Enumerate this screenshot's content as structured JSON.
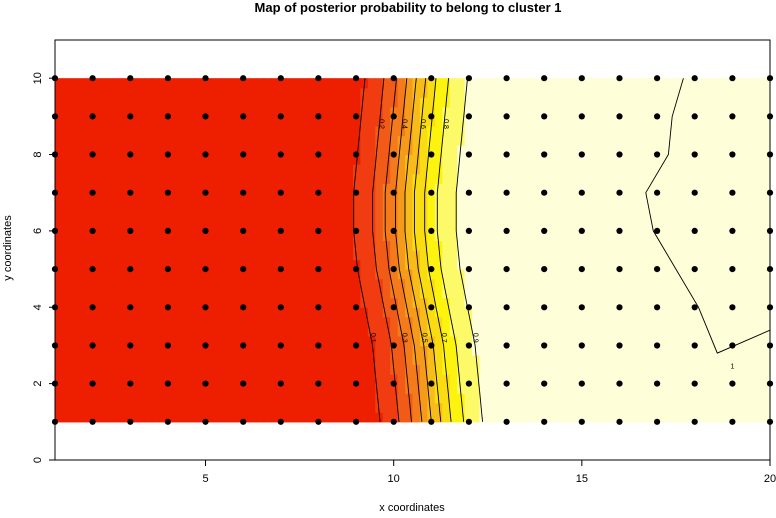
{
  "chart_data": {
    "type": "heatmap",
    "title": "Map of posterior probability to belong to cluster  1",
    "xlabel": "x coordinates",
    "ylabel": "y coordinates",
    "xlim": [
      1,
      20
    ],
    "ylim": [
      0,
      11
    ],
    "x_ticks": [
      5,
      10,
      15,
      20
    ],
    "y_ticks": [
      0,
      2,
      4,
      6,
      8,
      10
    ],
    "grid": false,
    "field": {
      "x_range": [
        1,
        20
      ],
      "y_range": [
        1,
        10
      ],
      "transition_x": [
        {
          "y": 1,
          "x": 11.0
        },
        {
          "y": 2,
          "x": 10.9
        },
        {
          "y": 3,
          "x": 10.8
        },
        {
          "y": 4,
          "x": 10.6
        },
        {
          "y": 5,
          "x": 10.4
        },
        {
          "y": 6,
          "x": 10.3
        },
        {
          "y": 7,
          "x": 10.3
        },
        {
          "y": 8,
          "x": 10.4
        },
        {
          "y": 9,
          "x": 10.5
        },
        {
          "y": 10,
          "x": 10.6
        }
      ],
      "color_levels": [
        {
          "max": 0.1,
          "color": "#ee1e00"
        },
        {
          "max": 0.2,
          "color": "#f03c10"
        },
        {
          "max": 0.3,
          "color": "#f25a18"
        },
        {
          "max": 0.4,
          "color": "#f47a1c"
        },
        {
          "max": 0.5,
          "color": "#f69a1c"
        },
        {
          "max": 0.6,
          "color": "#f8bc1a"
        },
        {
          "max": 0.7,
          "color": "#fadc12"
        },
        {
          "max": 0.8,
          "color": "#fcf40e"
        },
        {
          "max": 0.9,
          "color": "#fdfa6a"
        },
        {
          "max": 1.01,
          "color": "#fefed8"
        }
      ]
    },
    "contour_levels": [
      {
        "level": 0.1,
        "label": "0.1"
      },
      {
        "level": 0.2,
        "label": "0.2"
      },
      {
        "level": 0.3,
        "label": "0.3"
      },
      {
        "level": 0.4,
        "label": "0.4"
      },
      {
        "level": 0.5,
        "label": "0.5"
      },
      {
        "level": 0.6,
        "label": "0.6"
      },
      {
        "level": 0.7,
        "label": "0.7"
      },
      {
        "level": 0.8,
        "label": "0.8"
      },
      {
        "level": 0.9,
        "label": "0.9"
      }
    ],
    "contour_one": {
      "label": "1",
      "points": [
        [
          17.7,
          10
        ],
        [
          17.4,
          9
        ],
        [
          17.3,
          8
        ],
        [
          16.7,
          7
        ],
        [
          16.9,
          6
        ],
        [
          17.5,
          5
        ],
        [
          18.1,
          4
        ],
        [
          18.6,
          2.8
        ],
        [
          20,
          3.4
        ],
        [
          20,
          10
        ]
      ]
    },
    "points": {
      "x": [
        1,
        2,
        3,
        4,
        5,
        6,
        7,
        8,
        9,
        10,
        11,
        12,
        13,
        14,
        15,
        16,
        17,
        18,
        19,
        20
      ],
      "y": [
        1,
        2,
        3,
        4,
        5,
        6,
        7,
        8,
        9,
        10
      ],
      "color": "#000000"
    }
  }
}
